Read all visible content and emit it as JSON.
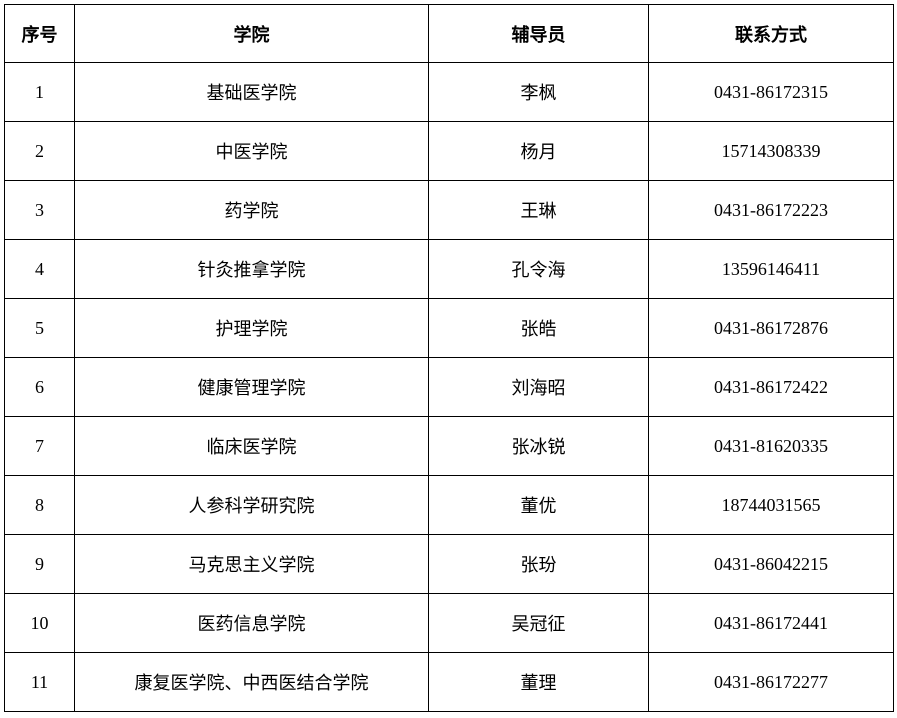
{
  "table": {
    "headers": {
      "index": "序号",
      "college": "学院",
      "counselor": "辅导员",
      "contact": "联系方式"
    },
    "rows": [
      {
        "index": "1",
        "college": "基础医学院",
        "counselor": "李枫",
        "contact": "0431-86172315"
      },
      {
        "index": "2",
        "college": "中医学院",
        "counselor": "杨月",
        "contact": "15714308339"
      },
      {
        "index": "3",
        "college": "药学院",
        "counselor": "王琳",
        "contact": "0431-86172223"
      },
      {
        "index": "4",
        "college": "针灸推拿学院",
        "counselor": "孔令海",
        "contact": "13596146411"
      },
      {
        "index": "5",
        "college": "护理学院",
        "counselor": "张皓",
        "contact": "0431-86172876"
      },
      {
        "index": "6",
        "college": "健康管理学院",
        "counselor": "刘海昭",
        "contact": "0431-86172422"
      },
      {
        "index": "7",
        "college": "临床医学院",
        "counselor": "张冰锐",
        "contact": "0431-81620335"
      },
      {
        "index": "8",
        "college": "人参科学研究院",
        "counselor": "董优",
        "contact": "18744031565"
      },
      {
        "index": "9",
        "college": "马克思主义学院",
        "counselor": "张玢",
        "contact": "0431-86042215"
      },
      {
        "index": "10",
        "college": "医药信息学院",
        "counselor": "吴冠征",
        "contact": "0431-86172441"
      },
      {
        "index": "11",
        "college": "康复医学院、中西医结合学院",
        "counselor": "董理",
        "contact": "0431-86172277"
      }
    ]
  }
}
